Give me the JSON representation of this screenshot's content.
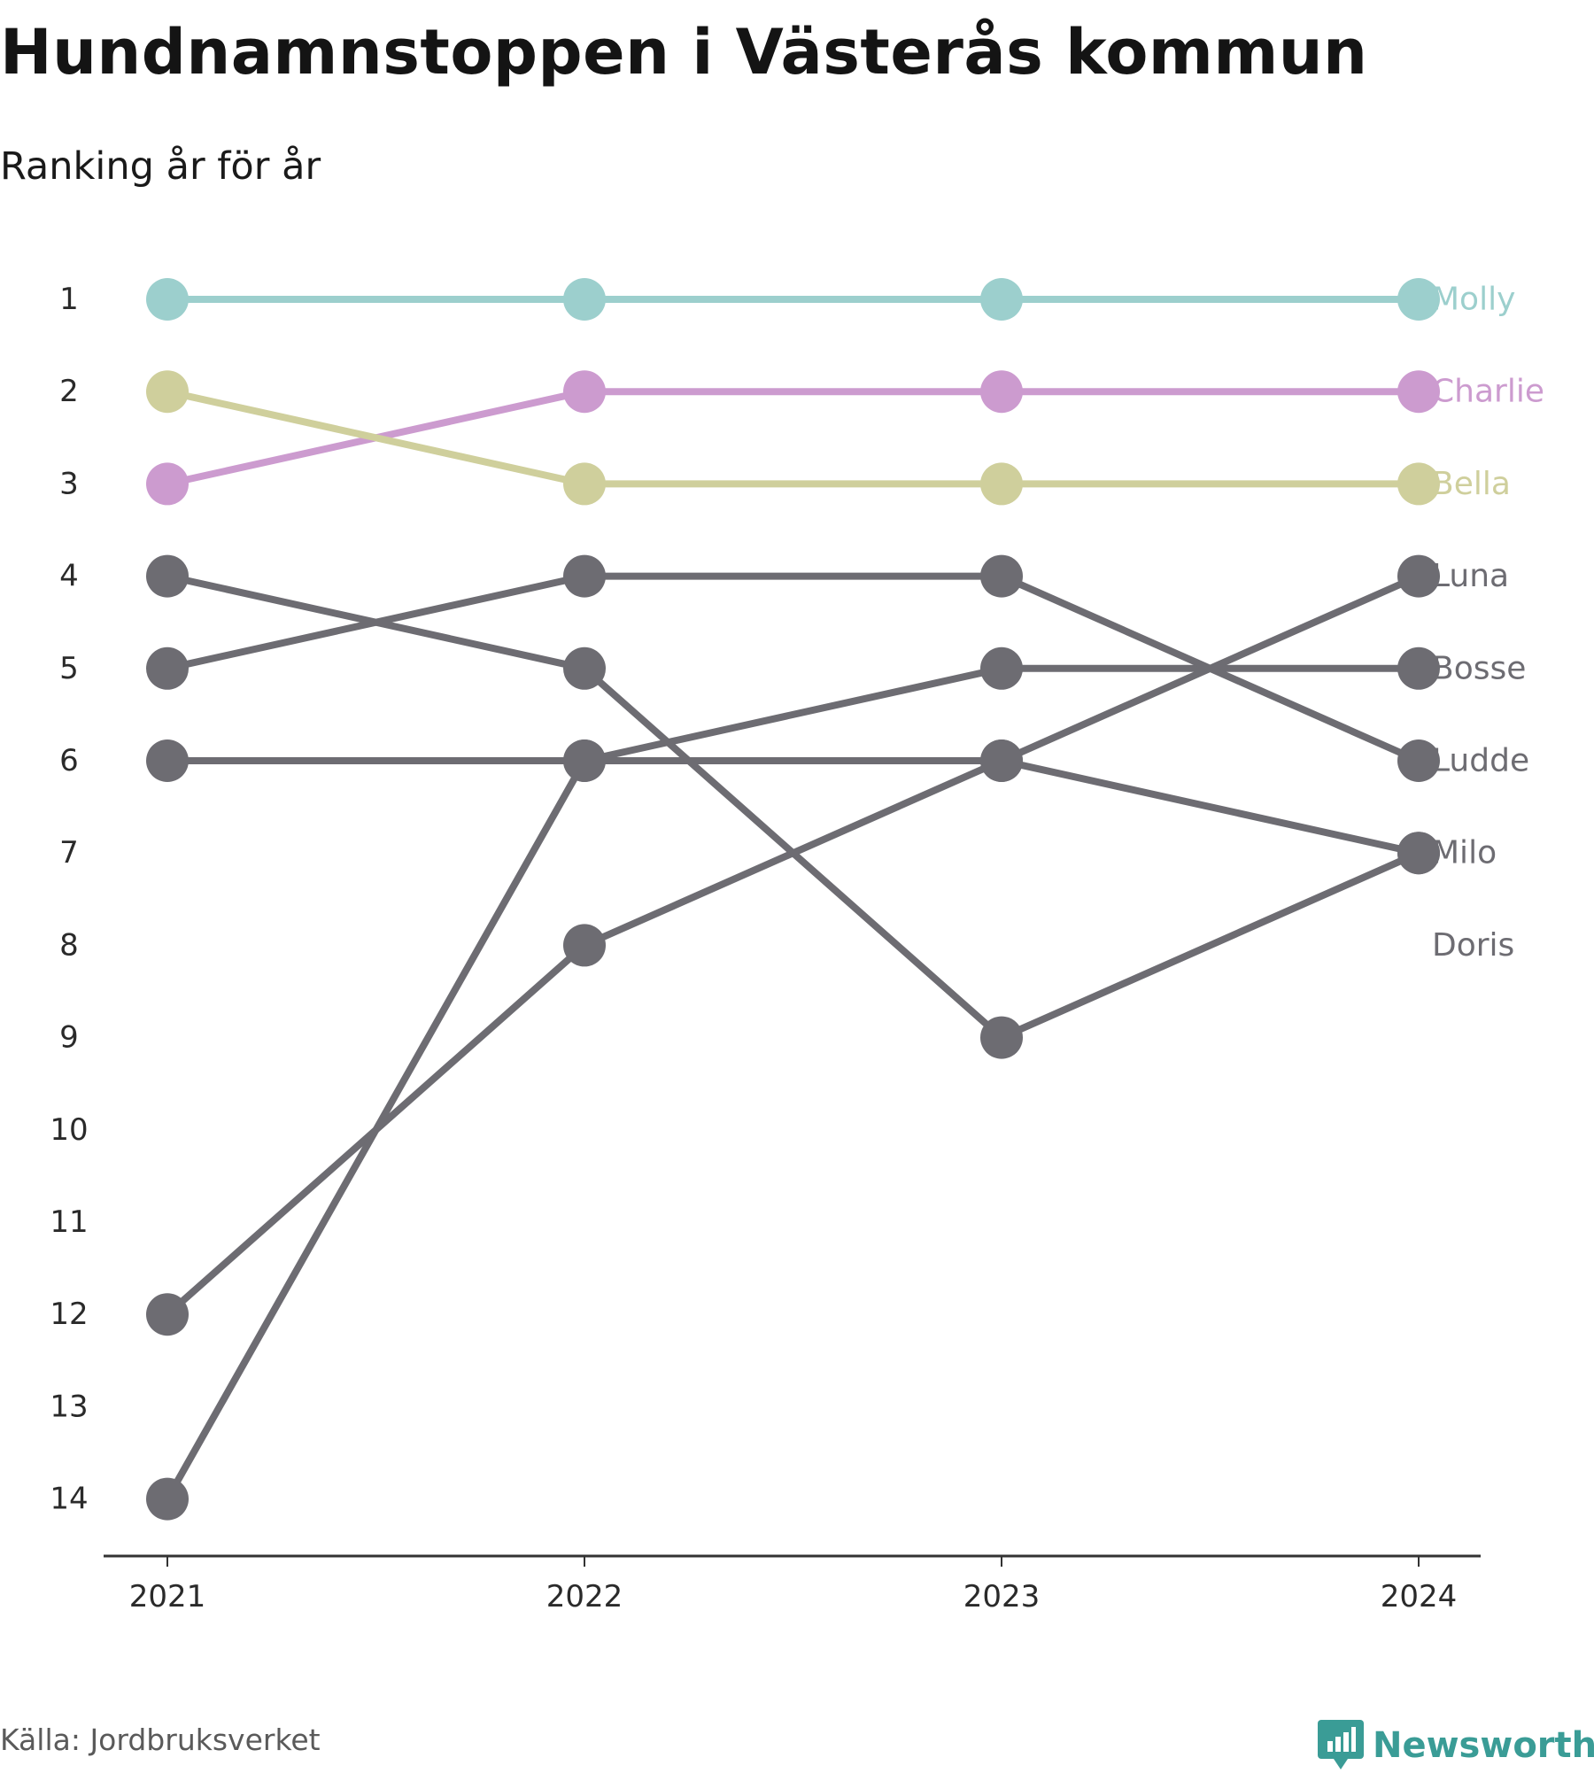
{
  "title": "Hundnamnstoppen i Västerås kommun",
  "subtitle": "Ranking år för år",
  "source": "Källa: Jordbruksverket",
  "brand": {
    "name": "Newsworthy",
    "icon": "bar-chart-speech-bubble-icon",
    "color": "#3a9c96"
  },
  "chart_data": {
    "type": "line",
    "x": [
      "2021",
      "2022",
      "2023",
      "2024"
    ],
    "y_ticks": [
      "1",
      "2",
      "3",
      "4",
      "5",
      "6",
      "7",
      "8",
      "9",
      "10",
      "11",
      "12",
      "13",
      "14"
    ],
    "ylim": [
      1,
      14
    ],
    "y_reversed": true,
    "grid": false,
    "legend": "direct labels at right end",
    "series": [
      {
        "name": "Molly",
        "values": [
          1,
          1,
          1,
          1
        ],
        "color": "#9ccfcd"
      },
      {
        "name": "Charlie",
        "values": [
          3,
          2,
          2,
          2
        ],
        "color": "#cc9bcf"
      },
      {
        "name": "Bella",
        "values": [
          2,
          3,
          3,
          3
        ],
        "color": "#cfcf9c"
      },
      {
        "name": "Luna",
        "values": [
          12,
          8,
          6,
          4
        ],
        "color": "#6d6c72"
      },
      {
        "name": "Bosse",
        "values": [
          14,
          6,
          5,
          5
        ],
        "color": "#6d6c72"
      },
      {
        "name": "Ludde",
        "values": [
          5,
          4,
          4,
          6
        ],
        "color": "#6d6c72"
      },
      {
        "name": "Milo",
        "values": [
          6,
          6,
          6,
          7
        ],
        "color": "#6d6c72"
      },
      {
        "name": "Doris",
        "values": [
          4,
          5,
          9,
          7
        ],
        "color": "#6d6c72",
        "label_color": "#6d6c72"
      }
    ]
  }
}
